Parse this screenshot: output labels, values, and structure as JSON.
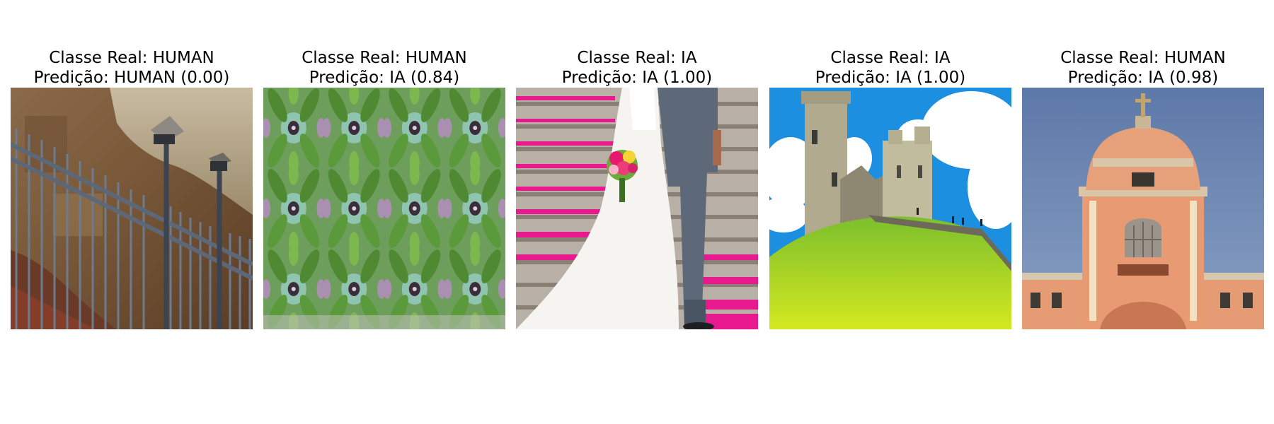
{
  "figure": {
    "panels": [
      {
        "title_line1": "Classe Real: HUMAN",
        "title_line2": "Predição: HUMAN (0.00)",
        "true_class": "HUMAN",
        "predicted_class": "HUMAN",
        "confidence": 0.0,
        "image_subject": "rock-wall-with-metal-fence"
      },
      {
        "title_line1": "Classe Real: HUMAN",
        "title_line2": "Predição: IA (0.84)",
        "true_class": "HUMAN",
        "predicted_class": "IA",
        "confidence": 0.84,
        "image_subject": "kaleidoscope-leaf-pattern"
      },
      {
        "title_line1": "Classe Real: IA",
        "title_line2": "Predição: IA (1.00)",
        "true_class": "IA",
        "predicted_class": "IA",
        "confidence": 1.0,
        "image_subject": "wedding-couple-on-petal-stairs"
      },
      {
        "title_line1": "Classe Real: IA",
        "title_line2": "Predição: IA (1.00)",
        "true_class": "IA",
        "predicted_class": "IA",
        "confidence": 1.0,
        "image_subject": "castle-ruins-on-green-hill"
      },
      {
        "title_line1": "Classe Real: HUMAN",
        "title_line2": "Predição: IA (0.98)",
        "true_class": "HUMAN",
        "predicted_class": "IA",
        "confidence": 0.98,
        "image_subject": "domed-building-with-cross"
      }
    ]
  }
}
